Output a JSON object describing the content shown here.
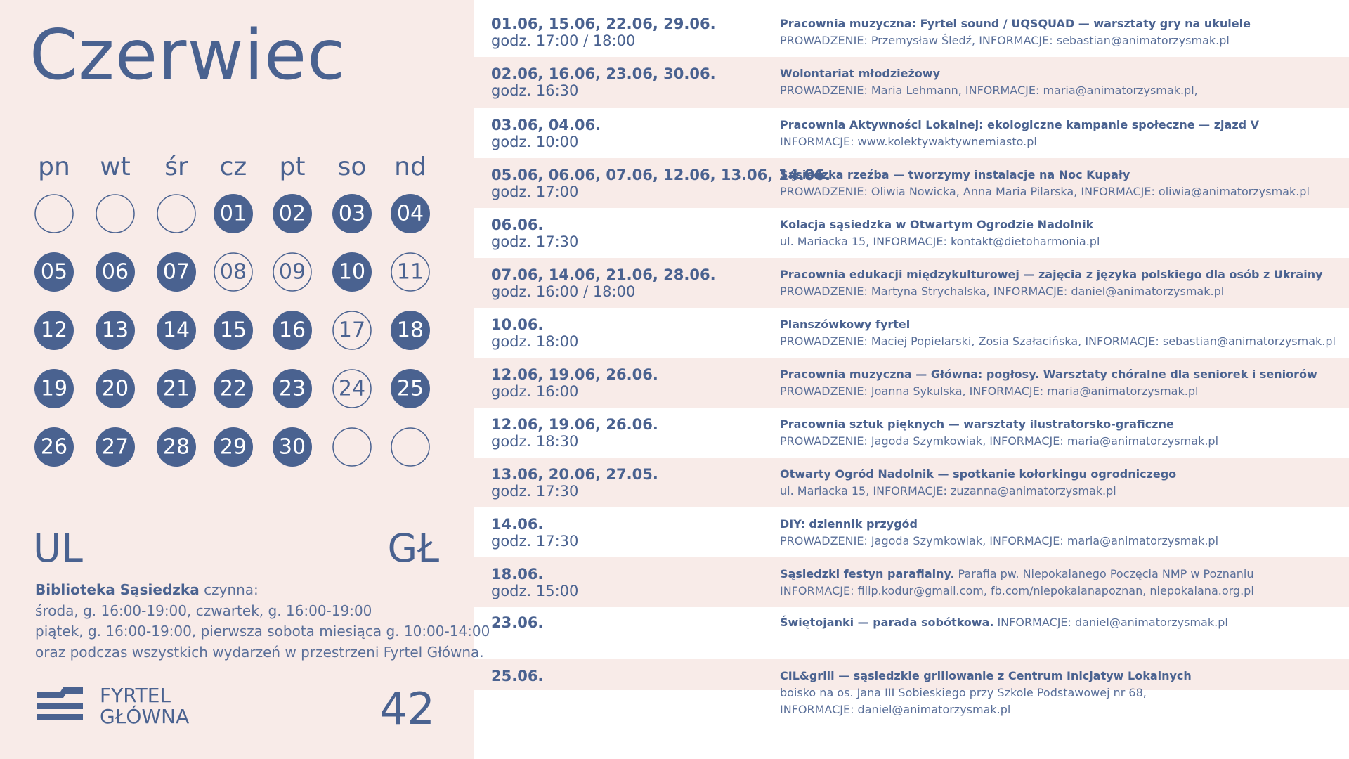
{
  "title": "Czerwiec",
  "calendar": {
    "weekdays": [
      "pn",
      "wt",
      "śr",
      "cz",
      "pt",
      "so",
      "nd"
    ],
    "weeks": [
      [
        null,
        null,
        null,
        {
          "day": "01",
          "filled": true
        },
        {
          "day": "02",
          "filled": true
        },
        {
          "day": "03",
          "filled": true
        },
        {
          "day": "04",
          "filled": true
        }
      ],
      [
        {
          "day": "05",
          "filled": true
        },
        {
          "day": "06",
          "filled": true
        },
        {
          "day": "07",
          "filled": true
        },
        {
          "day": "08",
          "filled": false
        },
        {
          "day": "09",
          "filled": false
        },
        {
          "day": "10",
          "filled": true
        },
        {
          "day": "11",
          "filled": false
        }
      ],
      [
        {
          "day": "12",
          "filled": true
        },
        {
          "day": "13",
          "filled": true
        },
        {
          "day": "14",
          "filled": true
        },
        {
          "day": "15",
          "filled": true
        },
        {
          "day": "16",
          "filled": true
        },
        {
          "day": "17",
          "filled": false
        },
        {
          "day": "18",
          "filled": true
        }
      ],
      [
        {
          "day": "19",
          "filled": true
        },
        {
          "day": "20",
          "filled": true
        },
        {
          "day": "21",
          "filled": true
        },
        {
          "day": "22",
          "filled": true
        },
        {
          "day": "23",
          "filled": true
        },
        {
          "day": "24",
          "filled": false
        },
        {
          "day": "25",
          "filled": true
        }
      ],
      [
        {
          "day": "26",
          "filled": true
        },
        {
          "day": "27",
          "filled": true
        },
        {
          "day": "28",
          "filled": true
        },
        {
          "day": "29",
          "filled": true
        },
        {
          "day": "30",
          "filled": true
        },
        null,
        null
      ]
    ]
  },
  "location": {
    "left": "UL",
    "right": "GŁ"
  },
  "library": {
    "name": "Biblioteka Sąsiedzka",
    "name_suffix": "czynna:",
    "lines": [
      "środa, g. 16:00-19:00, czwartek, g. 16:00-19:00",
      "piątek, g. 16:00-19:00, pierwsza sobota miesiąca g. 10:00-14:00",
      "oraz podczas wszystkich wydarzeń w przestrzeni Fyrtel Główna."
    ]
  },
  "logo": {
    "lines": [
      "FYRTEL",
      "GŁÓWNA"
    ]
  },
  "page_number": "42",
  "events": [
    {
      "dates": "01.06, 15.06, 22.06, 29.06.",
      "time": "godz. 17:00 / 18:00",
      "title": "Pracownia muzyczna: Fyrtel sound / UQSQUAD — warsztaty gry na ukulele",
      "details": [
        "PROWADZENIE: Przemysław Śledź, INFORMACJE: sebastian@animatorzysmak.pl"
      ]
    },
    {
      "dates": "02.06, 16.06, 23.06, 30.06.",
      "time": "godz. 16:30",
      "title": "Wolontariat młodzieżowy",
      "details": [
        "PROWADZENIE: Maria Lehmann, INFORMACJE: maria@animatorzysmak.pl,"
      ]
    },
    {
      "dates": "03.06, 04.06.",
      "time": "godz. 10:00",
      "title": "Pracownia Aktywności Lokalnej: ekologiczne kampanie społeczne — zjazd V",
      "details": [
        "INFORMACJE: www.kolektywaktywnemiasto.pl"
      ]
    },
    {
      "dates": "05.06, 06.06, 07.06, 12.06, 13.06, 14.06.",
      "time": "godz. 17:00",
      "title": "Sąsiedzka rzeźba — tworzymy instalacje na Noc Kupały",
      "details": [
        "PROWADZENIE: Oliwia Nowicka, Anna Maria Pilarska, INFORMACJE: oliwia@animatorzysmak.pl"
      ]
    },
    {
      "dates": "06.06.",
      "time": "godz. 17:30",
      "title": "Kolacja sąsiedzka w Otwartym Ogrodzie Nadolnik",
      "details": [
        "ul. Mariacka 15, INFORMACJE: kontakt@dietoharmonia.pl"
      ]
    },
    {
      "dates": "07.06, 14.06, 21.06, 28.06.",
      "time": "godz. 16:00 / 18:00",
      "title": "Pracownia edukacji międzykulturowej — zajęcia z języka polskiego dla osób z Ukrainy",
      "details": [
        "PROWADZENIE: Martyna Strychalska, INFORMACJE: daniel@animatorzysmak.pl"
      ]
    },
    {
      "dates": "10.06.",
      "time": "godz. 18:00",
      "title": "Planszówkowy fyrtel",
      "details": [
        "PROWADZENIE: Maciej Popielarski, Zosia Szałacińska, INFORMACJE: sebastian@animatorzysmak.pl"
      ]
    },
    {
      "dates": "12.06, 19.06, 26.06.",
      "time": "godz. 16:00",
      "title": "Pracownia muzyczna — Główna: pogłosy. Warsztaty chóralne dla seniorek i seniorów",
      "details": [
        "PROWADZENIE: Joanna Sykulska, INFORMACJE: maria@animatorzysmak.pl"
      ]
    },
    {
      "dates": "12.06, 19.06, 26.06.",
      "time": "godz. 18:30",
      "title": "Pracownia sztuk pięknych — warsztaty ilustratorsko-graficzne",
      "details": [
        "PROWADZENIE: Jagoda Szymkowiak, INFORMACJE: maria@animatorzysmak.pl"
      ]
    },
    {
      "dates": "13.06, 20.06, 27.05.",
      "time": "godz. 17:30",
      "title": "Otwarty Ogród Nadolnik — spotkanie kołorkingu ogrodniczego",
      "details": [
        "ul. Mariacka 15, INFORMACJE: zuzanna@animatorzysmak.pl"
      ]
    },
    {
      "dates": "14.06.",
      "time": "godz. 17:30",
      "title": "DIY: dziennik przygód",
      "details": [
        "PROWADZENIE: Jagoda Szymkowiak, INFORMACJE: maria@animatorzysmak.pl"
      ]
    },
    {
      "dates": "18.06.",
      "time": "godz. 15:00",
      "title": "Sąsiedzki festyn parafialny.",
      "title_extra": "Parafia pw. Niepokalanego Poczęcia NMP w Poznaniu",
      "details": [
        "INFORMACJE: filip.kodur@gmail.com, fb.com/niepokalanapoznan, niepokalana.org.pl"
      ]
    },
    {
      "dates": "23.06.",
      "title": "Świętojanki — parada sobótkowa.",
      "title_extra": "INFORMACJE: daniel@animatorzysmak.pl",
      "details": []
    },
    {
      "dates": "25.06.",
      "title": "CIL&grill — sąsiedzkie grillowanie z Centrum Inicjatyw Lokalnych",
      "details": [
        "boisko na os. Jana III Sobieskiego przy Szkole Podstawowej nr 68,",
        "INFORMACJE: daniel@animatorzysmak.pl"
      ]
    }
  ]
}
